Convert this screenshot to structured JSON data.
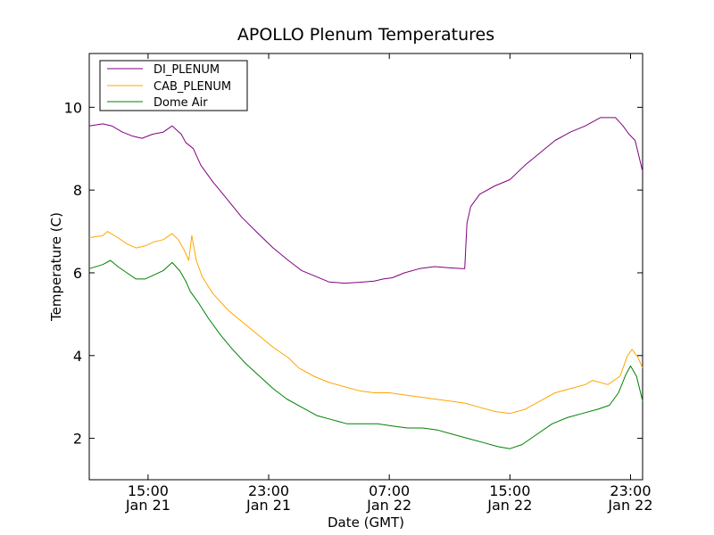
{
  "chart_data": {
    "type": "line",
    "title": "APOLLO Plenum Temperatures",
    "xlabel": "Date (GMT)",
    "ylabel": "Temperature (C)",
    "x_unit": "hours since Jan 21 00:00 GMT",
    "xlim": [
      11.1,
      47.8
    ],
    "ylim": [
      1,
      11.3
    ],
    "y_ticks": [
      2,
      4,
      6,
      8,
      10
    ],
    "y_tick_labels": [
      "2",
      "4",
      "6",
      "8",
      "10"
    ],
    "x_ticks": [
      {
        "x": 15,
        "time": "15:00",
        "date": "Jan 21"
      },
      {
        "x": 23,
        "time": "23:00",
        "date": "Jan 21"
      },
      {
        "x": 31,
        "time": "07:00",
        "date": "Jan 22"
      },
      {
        "x": 39,
        "time": "15:00",
        "date": "Jan 22"
      },
      {
        "x": 47,
        "time": "23:00",
        "date": "Jan 22"
      }
    ],
    "legend_position": "top-left",
    "series": [
      {
        "name": "DI_PLENUM",
        "color": "#800080",
        "points": [
          [
            11.1,
            9.55
          ],
          [
            12.0,
            9.6
          ],
          [
            12.6,
            9.55
          ],
          [
            13.3,
            9.4
          ],
          [
            14.0,
            9.3
          ],
          [
            14.6,
            9.25
          ],
          [
            15.3,
            9.35
          ],
          [
            16.0,
            9.4
          ],
          [
            16.6,
            9.55
          ],
          [
            17.2,
            9.35
          ],
          [
            17.5,
            9.15
          ],
          [
            18.0,
            9.0
          ],
          [
            18.5,
            8.6
          ],
          [
            19.3,
            8.2
          ],
          [
            20.2,
            7.8
          ],
          [
            21.2,
            7.35
          ],
          [
            22.3,
            6.95
          ],
          [
            23.3,
            6.6
          ],
          [
            24.3,
            6.3
          ],
          [
            25.2,
            6.05
          ],
          [
            26.2,
            5.9
          ],
          [
            27.0,
            5.78
          ],
          [
            28.0,
            5.75
          ],
          [
            29.0,
            5.77
          ],
          [
            30.0,
            5.8
          ],
          [
            30.6,
            5.85
          ],
          [
            31.2,
            5.88
          ],
          [
            32.0,
            6.0
          ],
          [
            33.0,
            6.1
          ],
          [
            34.0,
            6.15
          ],
          [
            35.0,
            6.12
          ],
          [
            35.8,
            6.1
          ],
          [
            36.0,
            6.1
          ],
          [
            36.15,
            7.2
          ],
          [
            36.4,
            7.6
          ],
          [
            37.0,
            7.9
          ],
          [
            38.0,
            8.1
          ],
          [
            39.0,
            8.25
          ],
          [
            40.0,
            8.6
          ],
          [
            41.0,
            8.9
          ],
          [
            42.0,
            9.2
          ],
          [
            43.0,
            9.4
          ],
          [
            44.0,
            9.55
          ],
          [
            45.0,
            9.75
          ],
          [
            46.0,
            9.75
          ],
          [
            46.5,
            9.55
          ],
          [
            46.9,
            9.35
          ],
          [
            47.3,
            9.2
          ],
          [
            47.8,
            8.45
          ]
        ]
      },
      {
        "name": "CAB_PLENUM",
        "color": "#ffa500",
        "points": [
          [
            11.1,
            6.85
          ],
          [
            12.0,
            6.9
          ],
          [
            12.3,
            7.0
          ],
          [
            13.0,
            6.85
          ],
          [
            13.6,
            6.7
          ],
          [
            14.2,
            6.6
          ],
          [
            14.8,
            6.65
          ],
          [
            15.4,
            6.75
          ],
          [
            16.0,
            6.8
          ],
          [
            16.6,
            6.95
          ],
          [
            17.0,
            6.8
          ],
          [
            17.4,
            6.55
          ],
          [
            17.7,
            6.3
          ],
          [
            17.9,
            6.9
          ],
          [
            18.2,
            6.3
          ],
          [
            18.6,
            5.9
          ],
          [
            19.3,
            5.5
          ],
          [
            20.3,
            5.1
          ],
          [
            21.3,
            4.8
          ],
          [
            22.3,
            4.5
          ],
          [
            23.3,
            4.2
          ],
          [
            24.3,
            3.95
          ],
          [
            25.0,
            3.7
          ],
          [
            26.0,
            3.5
          ],
          [
            27.0,
            3.35
          ],
          [
            28.0,
            3.25
          ],
          [
            29.0,
            3.15
          ],
          [
            30.0,
            3.1
          ],
          [
            31.0,
            3.1
          ],
          [
            32.0,
            3.05
          ],
          [
            33.0,
            3.0
          ],
          [
            34.0,
            2.95
          ],
          [
            35.0,
            2.9
          ],
          [
            36.0,
            2.85
          ],
          [
            37.0,
            2.75
          ],
          [
            38.0,
            2.65
          ],
          [
            39.0,
            2.6
          ],
          [
            40.0,
            2.7
          ],
          [
            41.0,
            2.9
          ],
          [
            42.0,
            3.1
          ],
          [
            43.0,
            3.2
          ],
          [
            44.0,
            3.3
          ],
          [
            44.5,
            3.4
          ],
          [
            45.5,
            3.3
          ],
          [
            46.3,
            3.5
          ],
          [
            46.8,
            4.0
          ],
          [
            47.1,
            4.15
          ],
          [
            47.5,
            3.95
          ],
          [
            47.8,
            3.7
          ]
        ]
      },
      {
        "name": "Dome Air",
        "color": "#008000",
        "points": [
          [
            11.1,
            6.1
          ],
          [
            12.0,
            6.2
          ],
          [
            12.5,
            6.3
          ],
          [
            13.0,
            6.15
          ],
          [
            13.6,
            6.0
          ],
          [
            14.2,
            5.85
          ],
          [
            14.8,
            5.85
          ],
          [
            15.4,
            5.95
          ],
          [
            16.0,
            6.05
          ],
          [
            16.6,
            6.25
          ],
          [
            17.1,
            6.05
          ],
          [
            17.5,
            5.8
          ],
          [
            17.8,
            5.55
          ],
          [
            18.3,
            5.3
          ],
          [
            19.0,
            4.9
          ],
          [
            19.8,
            4.5
          ],
          [
            20.6,
            4.15
          ],
          [
            21.5,
            3.8
          ],
          [
            22.4,
            3.5
          ],
          [
            23.3,
            3.2
          ],
          [
            24.2,
            2.95
          ],
          [
            25.2,
            2.75
          ],
          [
            26.2,
            2.55
          ],
          [
            27.2,
            2.45
          ],
          [
            28.2,
            2.35
          ],
          [
            29.2,
            2.35
          ],
          [
            30.2,
            2.35
          ],
          [
            31.2,
            2.3
          ],
          [
            32.2,
            2.25
          ],
          [
            33.2,
            2.25
          ],
          [
            34.2,
            2.2
          ],
          [
            35.2,
            2.1
          ],
          [
            36.2,
            2.0
          ],
          [
            37.2,
            1.9
          ],
          [
            38.2,
            1.8
          ],
          [
            39.0,
            1.75
          ],
          [
            39.8,
            1.85
          ],
          [
            40.8,
            2.1
          ],
          [
            41.8,
            2.35
          ],
          [
            42.8,
            2.5
          ],
          [
            43.8,
            2.6
          ],
          [
            44.8,
            2.7
          ],
          [
            45.6,
            2.8
          ],
          [
            46.2,
            3.1
          ],
          [
            46.7,
            3.55
          ],
          [
            47.0,
            3.75
          ],
          [
            47.4,
            3.5
          ],
          [
            47.8,
            2.9
          ]
        ]
      }
    ]
  }
}
